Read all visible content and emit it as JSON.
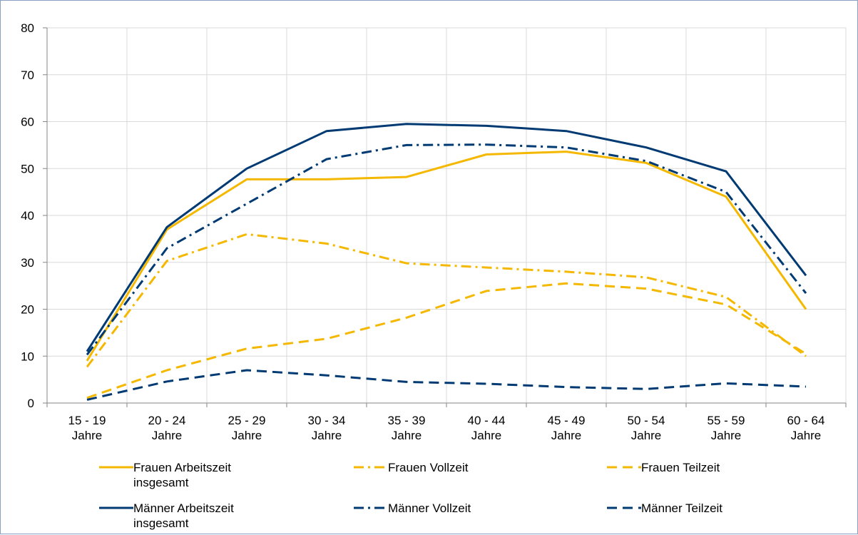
{
  "chart_data": {
    "type": "line",
    "categories": [
      [
        "15 - 19",
        "Jahre"
      ],
      [
        "20 - 24",
        "Jahre"
      ],
      [
        "25 - 29",
        "Jahre"
      ],
      [
        "30 - 34",
        "Jahre"
      ],
      [
        "35 - 39",
        "Jahre"
      ],
      [
        "40 - 44",
        "Jahre"
      ],
      [
        "45 - 49",
        "Jahre"
      ],
      [
        "50 - 54",
        "Jahre"
      ],
      [
        "55 - 59",
        "Jahre"
      ],
      [
        "60 - 64",
        "Jahre"
      ]
    ],
    "ylim": [
      0,
      80
    ],
    "yticks": [
      0,
      10,
      20,
      30,
      40,
      50,
      60,
      70,
      80
    ],
    "grid": true,
    "legend_position": "bottom",
    "series": [
      {
        "name": "Frauen Arbeitszeit insgesamt",
        "color": "#f5b800",
        "dash": "solid",
        "values": [
          9,
          37,
          47.7,
          47.7,
          48.2,
          53,
          53.6,
          51.2,
          44,
          20
        ]
      },
      {
        "name": "Frauen Vollzeit",
        "color": "#f5b800",
        "dash": "dashdot",
        "values": [
          7.7,
          30.3,
          36,
          34,
          29.8,
          28.9,
          28,
          26.8,
          22.6,
          10
        ]
      },
      {
        "name": "Frauen Teilzeit",
        "color": "#f5b800",
        "dash": "dash",
        "values": [
          1.1,
          7,
          11.6,
          13.7,
          18.2,
          23.9,
          25.5,
          24.4,
          21,
          10.5
        ]
      },
      {
        "name": "Männer Arbeitszeit insgesamt",
        "color": "#003a73",
        "dash": "solid",
        "values": [
          11,
          37.5,
          50,
          58,
          59.5,
          59.1,
          58,
          54.5,
          49.4,
          27.2
        ]
      },
      {
        "name": "Männer Vollzeit",
        "color": "#003a73",
        "dash": "dashdot",
        "values": [
          10.3,
          33,
          42.5,
          52,
          55,
          55.1,
          54.5,
          51.6,
          45,
          23.4
        ]
      },
      {
        "name": "Männer Teilzeit",
        "color": "#003a73",
        "dash": "dash",
        "values": [
          0.7,
          4.6,
          7,
          5.9,
          4.5,
          4.1,
          3.4,
          3,
          4.2,
          3.5
        ]
      }
    ]
  },
  "legend": {
    "items": [
      {
        "lines": [
          "Frauen Arbeitszeit",
          "insgesamt"
        ]
      },
      {
        "lines": [
          "Frauen Vollzeit"
        ]
      },
      {
        "lines": [
          "Frauen Teilzeit"
        ]
      },
      {
        "lines": [
          "Männer Arbeitszeit",
          "insgesamt"
        ]
      },
      {
        "lines": [
          "Männer Vollzeit"
        ]
      },
      {
        "lines": [
          "Männer Teilzeit"
        ]
      }
    ]
  }
}
